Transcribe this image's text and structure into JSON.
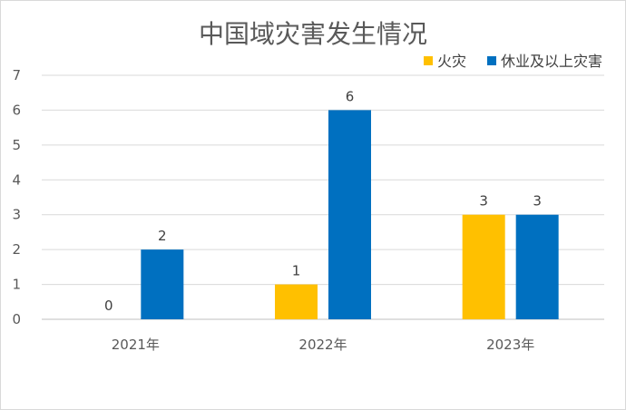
{
  "chart_data": {
    "type": "bar",
    "title": "中国域灾害发生情况",
    "categories": [
      "2021年",
      "2022年",
      "2023年"
    ],
    "series": [
      {
        "name": "火灾",
        "color": "#FFC000",
        "values": [
          0,
          1,
          3
        ]
      },
      {
        "name": "休业及以上灾害",
        "color": "#0070C0",
        "values": [
          2,
          6,
          3
        ]
      }
    ],
    "ylim": [
      0,
      7
    ],
    "yticks": [
      0,
      1,
      2,
      3,
      4,
      5,
      6,
      7
    ],
    "grid": true,
    "legend_position": "top-right"
  }
}
